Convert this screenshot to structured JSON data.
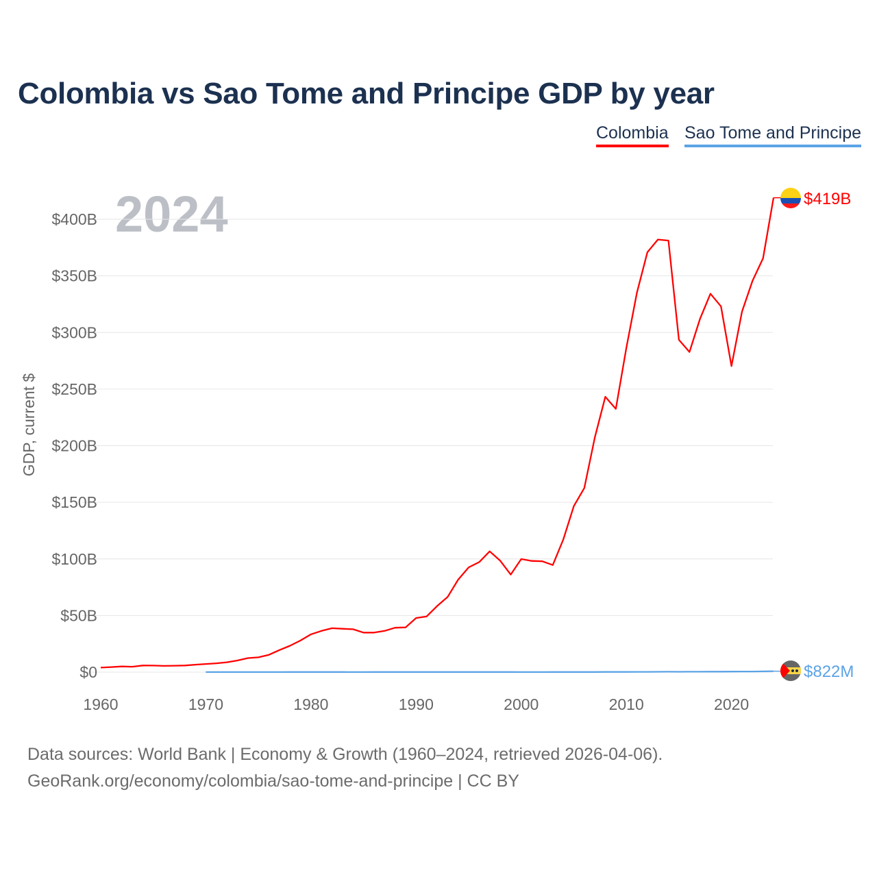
{
  "chart_data": {
    "type": "line",
    "title": "Colombia vs Sao Tome and Principe GDP by year",
    "ylabel": "GDP, current $",
    "xlabel": "",
    "year_watermark": "2024",
    "xlim": [
      1960,
      2024
    ],
    "ylim": [
      0,
      400
    ],
    "y_unit": "billion USD",
    "x_ticks": [
      "1960",
      "1970",
      "1980",
      "1990",
      "2000",
      "2010",
      "2020"
    ],
    "y_ticks": [
      {
        "value": 0,
        "label": "$0"
      },
      {
        "value": 50,
        "label": "$50B"
      },
      {
        "value": 100,
        "label": "$100B"
      },
      {
        "value": 150,
        "label": "$150B"
      },
      {
        "value": 200,
        "label": "$200B"
      },
      {
        "value": 250,
        "label": "$250B"
      },
      {
        "value": 300,
        "label": "$300B"
      },
      {
        "value": 350,
        "label": "$350B"
      },
      {
        "value": 400,
        "label": "$400B"
      }
    ],
    "grid": true,
    "legend_position": "top-right",
    "series": [
      {
        "name": "Colombia",
        "color": "#ff0000",
        "end_label": "$419B",
        "flag": "colombia-flag",
        "x_start": 1960,
        "values": [
          4.0,
          4.5,
          5.0,
          4.8,
          5.9,
          5.8,
          5.5,
          5.7,
          5.9,
          6.6,
          7.2,
          7.8,
          8.7,
          10.3,
          12.4,
          13.1,
          15.3,
          19.5,
          23.3,
          27.9,
          33.4,
          36.4,
          38.8,
          38.3,
          37.9,
          34.9,
          34.9,
          36.4,
          39.2,
          39.5,
          47.8,
          49.2,
          58.4,
          66.4,
          81.7,
          92.5,
          97.2,
          106.7,
          98.4,
          86.2,
          99.9,
          98.2,
          97.9,
          94.6,
          117.1,
          146.6,
          162.6,
          207.4,
          243.2,
          232.5,
          286.5,
          334.9,
          370.9,
          382.1,
          381.2,
          293.5,
          282.8,
          311.9,
          334.2,
          323.0,
          270.3,
          318.5,
          345.6,
          365.5,
          419.0
        ]
      },
      {
        "name": "Sao Tome and Principe",
        "color": "#5ba3e6",
        "end_label": "$822M",
        "flag": "sao-tome-flag",
        "x_start": 1970,
        "values": [
          0.04,
          0.04,
          0.05,
          0.06,
          0.07,
          0.07,
          0.08,
          0.09,
          0.1,
          0.11,
          0.12,
          0.11,
          0.1,
          0.1,
          0.09,
          0.09,
          0.1,
          0.1,
          0.1,
          0.1,
          0.12,
          0.11,
          0.11,
          0.11,
          0.1,
          0.1,
          0.1,
          0.1,
          0.1,
          0.1,
          0.08,
          0.08,
          0.09,
          0.1,
          0.11,
          0.12,
          0.13,
          0.15,
          0.18,
          0.18,
          0.2,
          0.25,
          0.27,
          0.31,
          0.35,
          0.32,
          0.35,
          0.38,
          0.41,
          0.43,
          0.48,
          0.53,
          0.55,
          0.68,
          0.822
        ]
      }
    ]
  },
  "legend": {
    "items": [
      "Colombia",
      "Sao Tome and Principe"
    ]
  },
  "source": {
    "line1": "Data sources: World Bank | Economy & Growth (1960–2024, retrieved 2026-04-06).",
    "line2": "GeoRank.org/economy/colombia/sao-tome-and-principe | CC BY"
  }
}
